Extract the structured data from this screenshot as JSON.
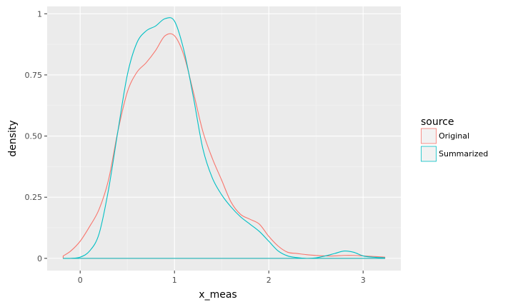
{
  "chart_data": {
    "type": "line",
    "title": "",
    "xlabel": "x_meas",
    "ylabel": "density",
    "xlim": [
      -0.35,
      3.4
    ],
    "ylim": [
      -0.05,
      1.03
    ],
    "x_ticks": [
      0,
      1,
      2,
      3
    ],
    "x_tick_labels": [
      "0",
      "1",
      "2",
      "3"
    ],
    "y_ticks": [
      0,
      0.25,
      0.5,
      0.75,
      1
    ],
    "y_tick_labels": [
      "0",
      "0.25",
      "0.50",
      "0.75",
      "1"
    ],
    "grid": true,
    "legend": {
      "title": "source",
      "placement": "right"
    },
    "series": [
      {
        "name": "Original",
        "color": "#F8766D",
        "x": [
          -0.18,
          -0.1,
          0.0,
          0.1,
          0.2,
          0.3,
          0.4,
          0.5,
          0.6,
          0.7,
          0.8,
          0.9,
          1.0,
          1.1,
          1.2,
          1.3,
          1.4,
          1.5,
          1.6,
          1.7,
          1.8,
          1.9,
          2.0,
          2.1,
          2.2,
          2.3,
          2.4,
          2.5,
          2.6,
          2.7,
          2.8,
          2.9,
          3.0,
          3.1,
          3.23
        ],
        "y": [
          0.01,
          0.03,
          0.07,
          0.13,
          0.2,
          0.32,
          0.52,
          0.68,
          0.76,
          0.8,
          0.85,
          0.91,
          0.91,
          0.83,
          0.68,
          0.52,
          0.41,
          0.32,
          0.23,
          0.18,
          0.16,
          0.14,
          0.09,
          0.05,
          0.025,
          0.02,
          0.015,
          0.012,
          0.01,
          0.01,
          0.012,
          0.012,
          0.01,
          0.008,
          0.005
        ]
      },
      {
        "name": "Summarized",
        "color": "#00BFC4",
        "x": [
          -0.18,
          -0.1,
          0.0,
          0.1,
          0.2,
          0.3,
          0.4,
          0.5,
          0.6,
          0.7,
          0.8,
          0.9,
          1.0,
          1.1,
          1.2,
          1.3,
          1.4,
          1.5,
          1.6,
          1.7,
          1.8,
          1.9,
          2.0,
          2.1,
          2.2,
          2.3,
          2.4,
          2.5,
          2.6,
          2.7,
          2.8,
          2.9,
          3.0,
          3.1,
          3.23
        ],
        "y": [
          0.0,
          0.0,
          0.005,
          0.03,
          0.1,
          0.28,
          0.52,
          0.75,
          0.88,
          0.93,
          0.95,
          0.98,
          0.97,
          0.85,
          0.66,
          0.45,
          0.33,
          0.26,
          0.21,
          0.17,
          0.14,
          0.11,
          0.07,
          0.03,
          0.01,
          0.003,
          0.0,
          0.002,
          0.01,
          0.02,
          0.03,
          0.025,
          0.01,
          0.005,
          0.002
        ]
      }
    ]
  }
}
